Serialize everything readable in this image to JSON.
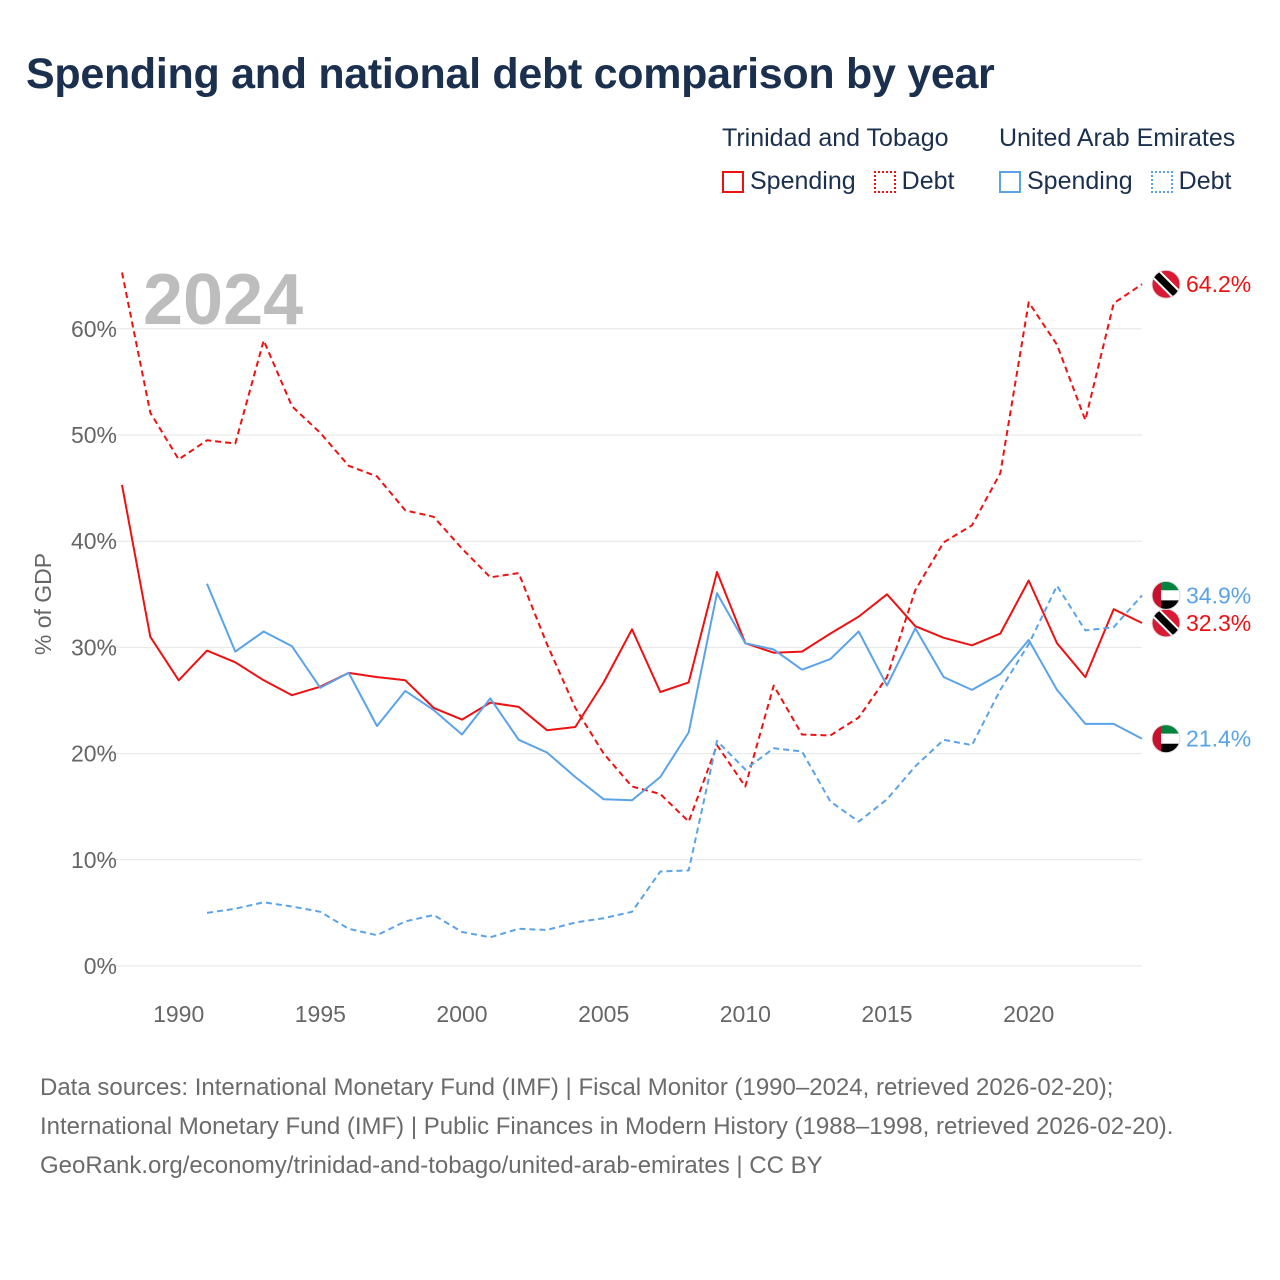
{
  "title": "Spending and national debt comparison by year",
  "legend": {
    "groups": [
      {
        "country": "Trinidad and Tobago",
        "items": [
          "Spending",
          "Debt"
        ],
        "color": "#ee1111"
      },
      {
        "country": "United Arab Emirates",
        "items": [
          "Spending",
          "Debt"
        ],
        "color": "#5ba3e8"
      }
    ]
  },
  "footer": {
    "sources": "Data sources: International Monetary Fund (IMF) | Fiscal Monitor (1990–2024, retrieved 2026-02-20); International Monetary Fund (IMF) | Public Finances in Modern History (1988–1998, retrieved 2026-02-20).",
    "credit": "GeoRank.org/economy/trinidad-and-tobago/united-arab-emirates | CC BY"
  },
  "chart_data": {
    "type": "line",
    "title": "Spending and national debt comparison by year",
    "year_label": "2024",
    "ylabel": "% of GDP",
    "xlabel": "",
    "xlim": [
      1988,
      2024
    ],
    "ylim": [
      0,
      65
    ],
    "x_ticks": [
      1990,
      1995,
      2000,
      2005,
      2010,
      2015,
      2020
    ],
    "y_ticks": [
      0,
      10,
      20,
      30,
      40,
      50,
      60
    ],
    "y_tick_labels": [
      "0%",
      "10%",
      "20%",
      "30%",
      "40%",
      "50%",
      "60%"
    ],
    "grid": true,
    "series": [
      {
        "name": "Trinidad and Tobago Spending",
        "country": "tt",
        "color": "#ee1111",
        "dash": false,
        "start": 1988,
        "end_label": "32.3%",
        "values": [
          45.3,
          31.0,
          26.9,
          29.7,
          28.6,
          26.9,
          25.5,
          26.3,
          27.6,
          27.2,
          26.9,
          24.3,
          23.2,
          24.8,
          24.4,
          22.2,
          22.5,
          26.7,
          31.7,
          25.8,
          26.7,
          37.1,
          30.4,
          29.5,
          29.6,
          31.3,
          32.9,
          35.0,
          32.0,
          30.9,
          30.2,
          31.3,
          36.3,
          30.4,
          27.2,
          33.6,
          32.3
        ]
      },
      {
        "name": "Trinidad and Tobago Debt",
        "country": "tt",
        "color": "#ee1111",
        "dash": true,
        "start": 1988,
        "end_label": "64.2%",
        "values": [
          65.3,
          52.1,
          47.7,
          49.5,
          49.2,
          58.9,
          52.7,
          50.2,
          47.1,
          46.1,
          42.9,
          42.3,
          39.3,
          36.6,
          37.0,
          30.3,
          24.3,
          20.0,
          16.9,
          16.2,
          13.6,
          20.8,
          16.9,
          26.4,
          21.8,
          21.7,
          23.4,
          27.2,
          35.4,
          39.9,
          41.5,
          46.4,
          62.5,
          58.5,
          51.4,
          62.4,
          64.2
        ]
      },
      {
        "name": "United Arab Emirates Spending",
        "country": "ae",
        "color": "#5ba3e8",
        "dash": false,
        "start": 1991,
        "end_label": "21.4%",
        "values": [
          36.0,
          29.6,
          31.5,
          30.1,
          26.2,
          27.6,
          22.6,
          25.9,
          24.1,
          21.8,
          25.2,
          21.3,
          20.1,
          17.8,
          15.7,
          15.6,
          17.8,
          22.0,
          35.1,
          30.4,
          29.8,
          27.9,
          28.9,
          31.5,
          26.4,
          31.8,
          27.2,
          26.0,
          27.5,
          30.7,
          26.0,
          22.8,
          22.8,
          21.4
        ]
      },
      {
        "name": "United Arab Emirates Debt",
        "country": "ae",
        "color": "#5ba3e8",
        "dash": true,
        "start": 1991,
        "end_label": "34.9%",
        "values": [
          5.0,
          5.4,
          6.0,
          5.6,
          5.1,
          3.5,
          2.9,
          4.2,
          4.8,
          3.2,
          2.7,
          3.5,
          3.4,
          4.1,
          4.5,
          5.1,
          8.9,
          9.0,
          21.2,
          18.5,
          20.5,
          20.2,
          15.5,
          13.6,
          15.7,
          18.8,
          21.3,
          20.8,
          26.0,
          30.3,
          35.8,
          31.6,
          31.9,
          34.9
        ]
      }
    ]
  }
}
